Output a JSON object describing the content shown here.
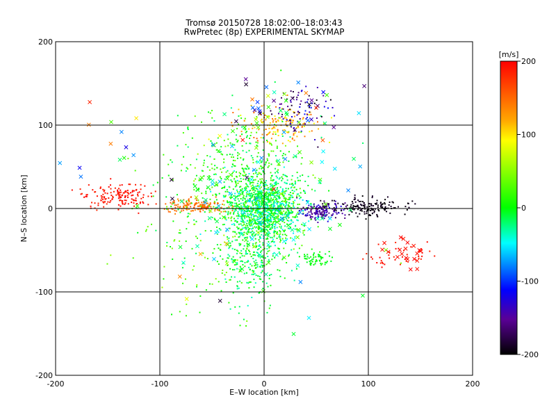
{
  "chart_data": {
    "type": "scatter",
    "title": "Tromsø 20150728 18:02:00–18:03:43",
    "subtitle": "RwPretec (8p) EXPERIMENTAL SKYMAP",
    "xlabel": "E–W location [km]",
    "ylabel": "N–S location [km]",
    "xlim": [
      -200,
      200
    ],
    "ylim": [
      -200,
      200
    ],
    "x_ticks": [
      -200,
      -100,
      0,
      100,
      200
    ],
    "y_ticks": [
      -200,
      -100,
      0,
      100,
      200
    ],
    "x_tick_labels": [
      "-200",
      "-100",
      "0",
      "100",
      "200"
    ],
    "y_tick_labels": [
      "-200",
      "-100",
      "0",
      "100",
      "200"
    ],
    "grid": true,
    "colorbar": {
      "label": "[m/s]",
      "range": [
        -200,
        200
      ],
      "ticks": [
        200,
        100,
        0,
        -100,
        -200
      ],
      "tick_labels": [
        "200",
        "100",
        "0",
        "-100",
        "-200"
      ],
      "colors": [
        "#ff0000",
        "#ffa500",
        "#ffff00",
        "#00ff00",
        "#00ffff",
        "#0000ff",
        "#5a0096",
        "#000000"
      ]
    },
    "series": [
      {
        "marker": "dot",
        "clusters": [
          {
            "center": [
              0,
              0
            ],
            "spread": [
              18,
              20
            ],
            "count": 1200,
            "velocity": [
              -60,
              40
            ]
          },
          {
            "center": [
              -10,
              -50
            ],
            "spread": [
              14,
              35
            ],
            "count": 280,
            "velocity": [
              -40,
              20
            ]
          },
          {
            "center": [
              -20,
              50
            ],
            "spread": [
              30,
              35
            ],
            "count": 300,
            "velocity": [
              -30,
              40
            ]
          },
          {
            "center": [
              15,
              100
            ],
            "spread": [
              20,
              10
            ],
            "count": 150,
            "velocity": [
              80,
              160
            ]
          },
          {
            "center": [
              35,
              120
            ],
            "spread": [
              15,
              15
            ],
            "count": 80,
            "velocity": [
              -200,
              -100
            ]
          },
          {
            "center": [
              -140,
              15
            ],
            "spread": [
              15,
              8
            ],
            "count": 160,
            "velocity": [
              180,
              200
            ]
          },
          {
            "center": [
              -65,
              3
            ],
            "spread": [
              15,
              4
            ],
            "count": 150,
            "velocity": [
              130,
              160
            ]
          },
          {
            "center": [
              55,
              -3
            ],
            "spread": [
              10,
              5
            ],
            "count": 150,
            "velocity": [
              -170,
              -120
            ]
          },
          {
            "center": [
              100,
              2
            ],
            "spread": [
              18,
              5
            ],
            "count": 160,
            "velocity": [
              -200,
              -185
            ]
          },
          {
            "center": [
              -40,
              -20
            ],
            "spread": [
              40,
              50
            ],
            "count": 280,
            "velocity": [
              -20,
              60
            ]
          },
          {
            "center": [
              50,
              -60
            ],
            "spread": [
              8,
              6
            ],
            "count": 60,
            "velocity": [
              -10,
              10
            ]
          },
          {
            "center": [
              130,
              -55
            ],
            "spread": [
              15,
              8
            ],
            "count": 40,
            "velocity": [
              180,
              200
            ]
          }
        ]
      },
      {
        "marker": "cross",
        "clusters": [
          {
            "center": [
              0,
              0
            ],
            "spread": [
              40,
              60
            ],
            "count": 120,
            "velocity": [
              -80,
              60
            ]
          },
          {
            "center": [
              20,
              120
            ],
            "spread": [
              30,
              20
            ],
            "count": 40,
            "velocity": [
              -200,
              200
            ]
          },
          {
            "center": [
              135,
              -55
            ],
            "spread": [
              10,
              10
            ],
            "count": 20,
            "velocity": [
              190,
              200
            ]
          },
          {
            "center": [
              -100,
              20
            ],
            "spread": [
              60,
              60
            ],
            "count": 30,
            "velocity": [
              -200,
              200
            ]
          }
        ]
      }
    ]
  }
}
